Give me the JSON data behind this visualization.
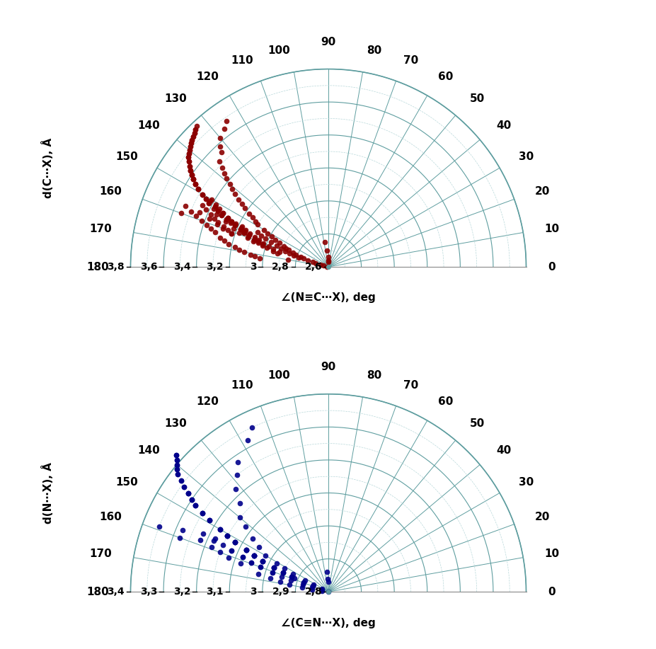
{
  "plot1": {
    "color": "#8B0000",
    "ylabel": "d(C⋯X), Å",
    "xlabel": "∠(N≡C⋯X), deg",
    "r_min": 2.6,
    "r_max": 3.8,
    "r_ticks": [
      2.6,
      2.8,
      3.0,
      3.2,
      3.4,
      3.6,
      3.8
    ],
    "r_tick_labels": [
      "2,6",
      "2,8",
      "3",
      "3,2",
      "3,4",
      "3,6",
      "3,8"
    ],
    "data_angles": [
      91,
      91,
      92,
      95,
      98,
      125,
      127,
      130,
      132,
      133,
      136,
      137,
      138,
      139,
      140,
      141,
      142,
      143,
      144,
      145,
      146,
      147,
      148,
      149,
      150,
      150,
      151,
      151,
      152,
      152,
      153,
      153,
      154,
      154,
      154,
      155,
      155,
      155,
      156,
      156,
      156,
      157,
      157,
      157,
      157,
      158,
      158,
      158,
      158,
      159,
      159,
      159,
      159,
      160,
      160,
      160,
      160,
      160,
      161,
      161,
      161,
      161,
      162,
      162,
      162,
      163,
      163,
      163,
      164,
      164,
      165,
      165,
      165,
      166,
      166,
      167,
      167,
      168,
      169,
      170,
      170,
      171,
      172,
      173,
      155,
      156,
      157,
      157,
      158,
      158,
      159,
      159,
      160,
      160,
      161,
      161,
      162,
      163,
      155,
      156,
      157,
      158,
      159,
      160,
      161,
      154,
      155,
      156,
      157,
      158,
      159,
      153,
      154,
      155,
      156,
      157,
      158,
      152,
      153,
      154,
      155,
      156,
      151,
      152,
      153,
      154,
      155,
      150,
      151,
      152,
      153,
      149,
      150,
      151,
      152,
      148,
      149,
      150,
      147,
      148,
      149,
      146,
      147,
      148,
      145,
      146,
      147,
      144,
      145,
      146,
      143,
      144,
      145,
      142,
      143,
      141,
      142,
      140,
      141,
      139,
      140,
      138,
      139,
      137,
      138,
      136,
      137,
      135,
      136,
      134,
      135,
      133,
      134,
      154,
      155,
      155,
      156,
      156,
      157,
      158,
      158,
      159,
      159,
      160,
      160,
      161,
      161,
      162,
      163
    ],
    "data_distances": [
      2.63,
      2.64,
      2.66,
      2.7,
      2.75,
      3.68,
      3.65,
      3.62,
      3.58,
      3.55,
      3.52,
      3.48,
      3.45,
      3.42,
      3.38,
      3.35,
      3.32,
      3.28,
      3.25,
      3.22,
      3.18,
      3.15,
      3.12,
      3.1,
      3.05,
      3.42,
      3.02,
      3.38,
      2.99,
      3.35,
      2.96,
      3.32,
      2.93,
      3.28,
      3.45,
      2.9,
      3.25,
      3.42,
      2.88,
      3.22,
      3.38,
      2.86,
      3.18,
      3.35,
      3.54,
      2.83,
      3.15,
      3.32,
      3.5,
      2.81,
      3.12,
      3.28,
      3.46,
      2.78,
      3.08,
      3.25,
      3.42,
      3.55,
      2.76,
      3.05,
      3.22,
      3.38,
      2.73,
      3.02,
      3.35,
      2.7,
      2.99,
      3.32,
      2.68,
      2.95,
      2.65,
      2.92,
      3.28,
      2.63,
      3.25,
      2.61,
      3.22,
      3.18,
      3.15,
      2.85,
      3.12,
      3.08,
      3.05,
      3.02,
      3.18,
      3.15,
      3.12,
      3.45,
      3.08,
      3.38,
      3.05,
      3.32,
      3.02,
      3.28,
      2.98,
      3.22,
      2.95,
      2.91,
      3.22,
      3.18,
      3.15,
      3.12,
      3.08,
      3.05,
      3.02,
      3.28,
      3.25,
      3.22,
      3.18,
      3.15,
      3.12,
      3.32,
      3.28,
      3.25,
      3.22,
      3.18,
      3.15,
      3.38,
      3.35,
      3.32,
      3.28,
      3.25,
      3.42,
      3.38,
      3.35,
      3.32,
      3.28,
      3.48,
      3.45,
      3.42,
      3.38,
      3.52,
      3.48,
      3.45,
      3.42,
      3.55,
      3.52,
      3.48,
      3.58,
      3.55,
      3.52,
      3.6,
      3.58,
      3.55,
      3.62,
      3.6,
      3.58,
      3.64,
      3.62,
      3.6,
      3.66,
      3.64,
      3.62,
      3.68,
      3.66,
      3.69,
      3.68,
      3.7,
      3.69,
      3.71,
      3.7,
      3.72,
      3.71,
      3.73,
      3.72,
      3.74,
      3.73,
      3.75,
      3.74,
      3.76,
      3.75,
      3.77,
      3.76,
      3.08,
      3.05,
      3.35,
      3.02,
      3.28,
      2.98,
      2.94,
      3.22,
      2.91,
      3.18,
      2.88,
      3.12,
      2.85,
      3.08,
      2.82,
      2.79
    ]
  },
  "plot2": {
    "color": "#00008B",
    "ylabel": "d(N⋯X), Å",
    "xlabel": "∠(C≡N⋯X), deg",
    "r_min": 2.8,
    "r_max": 3.4,
    "r_ticks": [
      2.8,
      2.9,
      3.0,
      3.1,
      3.2,
      3.3,
      3.4
    ],
    "r_tick_labels": [
      "2,8",
      "2,9",
      "3",
      "3,1",
      "3,2",
      "3,3",
      "3,4"
    ],
    "data_angles": [
      91,
      92,
      95,
      115,
      118,
      125,
      128,
      132,
      135,
      140,
      142,
      145,
      147,
      150,
      151,
      152,
      153,
      154,
      155,
      155,
      156,
      156,
      157,
      157,
      157,
      158,
      158,
      158,
      159,
      159,
      159,
      159,
      160,
      160,
      160,
      160,
      161,
      161,
      161,
      162,
      162,
      162,
      163,
      163,
      164,
      164,
      165,
      165,
      166,
      166,
      167,
      168,
      169,
      170,
      171,
      172,
      173,
      154,
      155,
      155,
      156,
      156,
      157,
      157,
      158,
      158,
      159,
      159,
      160,
      160,
      161,
      161,
      162,
      153,
      154,
      155,
      156,
      157,
      158,
      159,
      160,
      152,
      153,
      154,
      155,
      156,
      157,
      158,
      151,
      152,
      153,
      154,
      155,
      156,
      150,
      151,
      152,
      153,
      154,
      149,
      150,
      151,
      152,
      148,
      149,
      150,
      151,
      147,
      148,
      149,
      146,
      147,
      148,
      145,
      146,
      147,
      144,
      145,
      146,
      143,
      144,
      145,
      142,
      143,
      141,
      142,
      140,
      141,
      139,
      140,
      138,
      139,
      137,
      138,
      136,
      137
    ],
    "data_distances": [
      2.83,
      2.84,
      2.86,
      3.35,
      3.32,
      3.28,
      3.25,
      3.22,
      3.18,
      3.15,
      3.12,
      3.08,
      3.05,
      3.02,
      2.98,
      2.95,
      2.92,
      2.88,
      2.85,
      3.18,
      2.82,
      3.15,
      2.79,
      3.12,
      3.28,
      2.76,
      3.08,
      3.22,
      2.74,
      3.05,
      3.18,
      3.35,
      2.71,
      3.02,
      3.15,
      3.28,
      2.68,
      2.98,
      3.12,
      2.65,
      2.95,
      3.08,
      2.62,
      2.92,
      2.6,
      2.88,
      2.57,
      2.85,
      3.02,
      2.55,
      2.98,
      2.95,
      2.92,
      2.88,
      2.85,
      2.82,
      2.8,
      3.05,
      3.02,
      3.22,
      2.98,
      3.18,
      2.95,
      3.12,
      2.91,
      3.08,
      2.88,
      3.05,
      2.85,
      3.02,
      2.82,
      2.98,
      2.79,
      3.08,
      3.05,
      3.02,
      2.98,
      2.95,
      2.92,
      2.88,
      2.85,
      3.12,
      3.08,
      3.05,
      3.02,
      2.98,
      2.95,
      2.92,
      3.15,
      3.12,
      3.08,
      3.05,
      3.02,
      2.98,
      3.18,
      3.15,
      3.12,
      3.08,
      3.05,
      3.22,
      3.18,
      3.15,
      3.12,
      3.25,
      3.22,
      3.18,
      3.15,
      3.28,
      3.25,
      3.22,
      3.3,
      3.28,
      3.25,
      3.32,
      3.3,
      3.28,
      3.34,
      3.32,
      3.3,
      3.36,
      3.34,
      3.32,
      3.38,
      3.36,
      3.39,
      3.38,
      3.4,
      3.39,
      3.41,
      3.4,
      3.42,
      3.41,
      3.43,
      3.42,
      3.44,
      3.43
    ]
  },
  "grid_color_solid": "#5F9EA0",
  "grid_color_dashed": "#B8D8DA",
  "background_color": "#FFFFFF"
}
